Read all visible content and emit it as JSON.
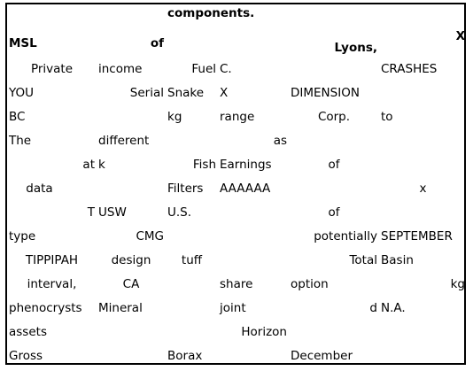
{
  "header": {
    "title_top": "components.",
    "cells": [
      "MSL",
      "of",
      "",
      "",
      "Lyons,",
      "X"
    ]
  },
  "rows": [
    [
      "Private",
      "income",
      "Fuel",
      "C.",
      "",
      "CRASHES"
    ],
    [
      "YOU",
      "Serial",
      "Snake",
      "X",
      "DIMENSION",
      ""
    ],
    [
      "BC",
      "",
      "kg",
      "range",
      "Corp.",
      "to"
    ],
    [
      "The",
      "different",
      "",
      "as",
      "",
      ""
    ],
    [
      "at",
      "k",
      "Fish",
      "Earnings",
      "of",
      ""
    ],
    [
      "data",
      "",
      "Filters",
      "AAAAAA",
      "",
      "x"
    ],
    [
      "T",
      "USW",
      "U.S.",
      "",
      "of",
      ""
    ],
    [
      "type",
      "CMG",
      "",
      "",
      "potentially",
      "SEPTEMBER"
    ],
    [
      "TIPPIPAH",
      "design",
      "tuff",
      "",
      "Total",
      "Basin"
    ],
    [
      "interval,",
      "CA",
      "",
      "share",
      "option",
      "kg"
    ],
    [
      "phenocrysts",
      "Mineral",
      "",
      "joint",
      "d",
      "N.A."
    ],
    [
      "assets",
      "",
      "",
      "Horizon",
      "",
      ""
    ],
    [
      "Gross",
      "",
      "Borax",
      "",
      "December",
      ""
    ]
  ]
}
